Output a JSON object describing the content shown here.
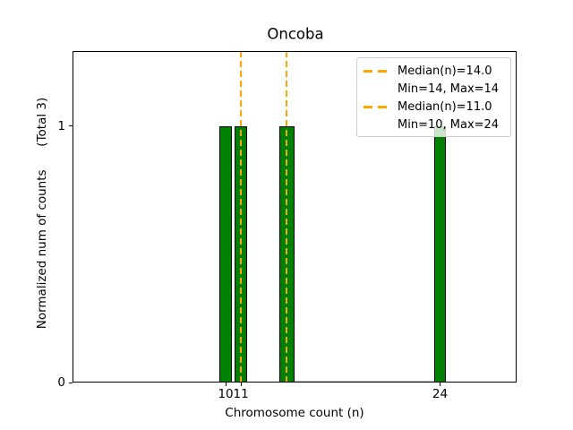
{
  "chart_data": {
    "type": "bar",
    "title": "Oncoba",
    "xlabel": "Chromosome count (n)",
    "ylabel": "Normalized num of counts      (Total 3)",
    "xlim": [
      0,
      29
    ],
    "ylim": [
      0,
      1.2925
    ],
    "grid": false,
    "bars": [
      {
        "x": 10,
        "height": 1.0,
        "width": 0.8
      },
      {
        "x": 11,
        "height": 1.0,
        "width": 0.8
      },
      {
        "x": 14,
        "height": 1.0,
        "width": 1.0
      },
      {
        "x": 24,
        "height": 1.0,
        "width": 0.8
      }
    ],
    "median_lines": [
      {
        "x": 14,
        "label": "Median(n)=14.0"
      },
      {
        "x": 11,
        "label": "Median(n)=11.0"
      }
    ],
    "zero_bins_segment": {
      "x_start": 14.5,
      "x_end": 23.6,
      "height": 0.0
    },
    "xticks": [
      {
        "x": 10,
        "label": "10"
      },
      {
        "x": 11,
        "label": "11"
      },
      {
        "x": 24,
        "label": "24"
      }
    ],
    "yticks": [
      {
        "y": 0,
        "label": "0"
      },
      {
        "y": 1,
        "label": "1"
      }
    ],
    "legend": {
      "position": "upper right",
      "items": [
        {
          "sample": "dashed-line",
          "label": "Median(n)=14.0"
        },
        {
          "sample": "none",
          "label": "Min=14, Max=14"
        },
        {
          "sample": "dashed-line",
          "label": "Median(n)=11.0"
        },
        {
          "sample": "none",
          "label": "Min=10, Max=24"
        }
      ]
    },
    "colors": {
      "bar_fill": "#008000",
      "bar_edge": "#000000",
      "median_line": "#FFA500",
      "axis": "#000000",
      "legend_border": "#CCCCCC",
      "zero_bins_line": "#C8C8C8"
    }
  }
}
